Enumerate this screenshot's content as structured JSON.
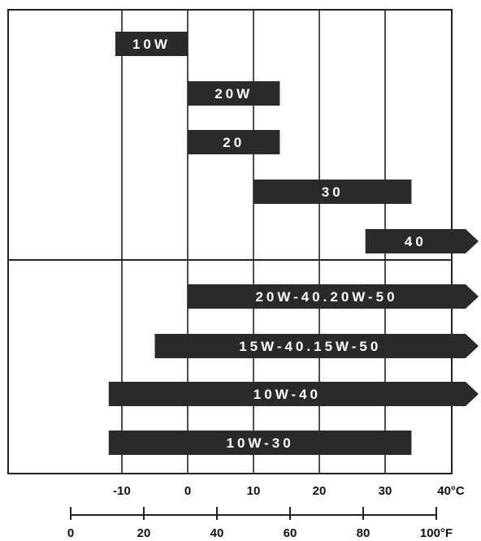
{
  "chart_data": {
    "type": "bar",
    "orientation": "horizontal-range",
    "title": "",
    "xlabel": "",
    "ylabel": "",
    "celsius_ticks": [
      "-10",
      "0",
      "10",
      "20",
      "30",
      "40°C"
    ],
    "celsius_tick_values": [
      -10,
      0,
      10,
      20,
      30,
      40
    ],
    "fahrenheit_ticks": [
      "0",
      "20",
      "40",
      "60",
      "80",
      "100°F"
    ],
    "fahrenheit_tick_values": [
      0,
      20,
      40,
      60,
      80,
      100
    ],
    "xlim": [
      -20,
      40
    ],
    "grid": true,
    "series": [
      {
        "label": "10W",
        "start": -11,
        "end": 0,
        "extends_beyond": false
      },
      {
        "label": "20W",
        "start": 0,
        "end": 14,
        "extends_beyond": false
      },
      {
        "label": "20",
        "start": 0,
        "end": 14,
        "extends_beyond": false
      },
      {
        "label": "30",
        "start": 10,
        "end": 34,
        "extends_beyond": false
      },
      {
        "label": "40",
        "start": 27,
        "end": 40,
        "extends_beyond": true
      },
      {
        "label": "20W-40.20W-50",
        "start": 0,
        "end": 40,
        "extends_beyond": true
      },
      {
        "label": "15W-40.15W-50",
        "start": -5,
        "end": 40,
        "extends_beyond": true
      },
      {
        "label": "10W-40",
        "start": -12,
        "end": 40,
        "extends_beyond": true
      },
      {
        "label": "10W-30",
        "start": -12,
        "end": 34,
        "extends_beyond": false
      }
    ]
  },
  "colors": {
    "bar": "#2a2a2a",
    "grid": "#222222",
    "text": "#111111",
    "bar_text": "#ffffff"
  }
}
